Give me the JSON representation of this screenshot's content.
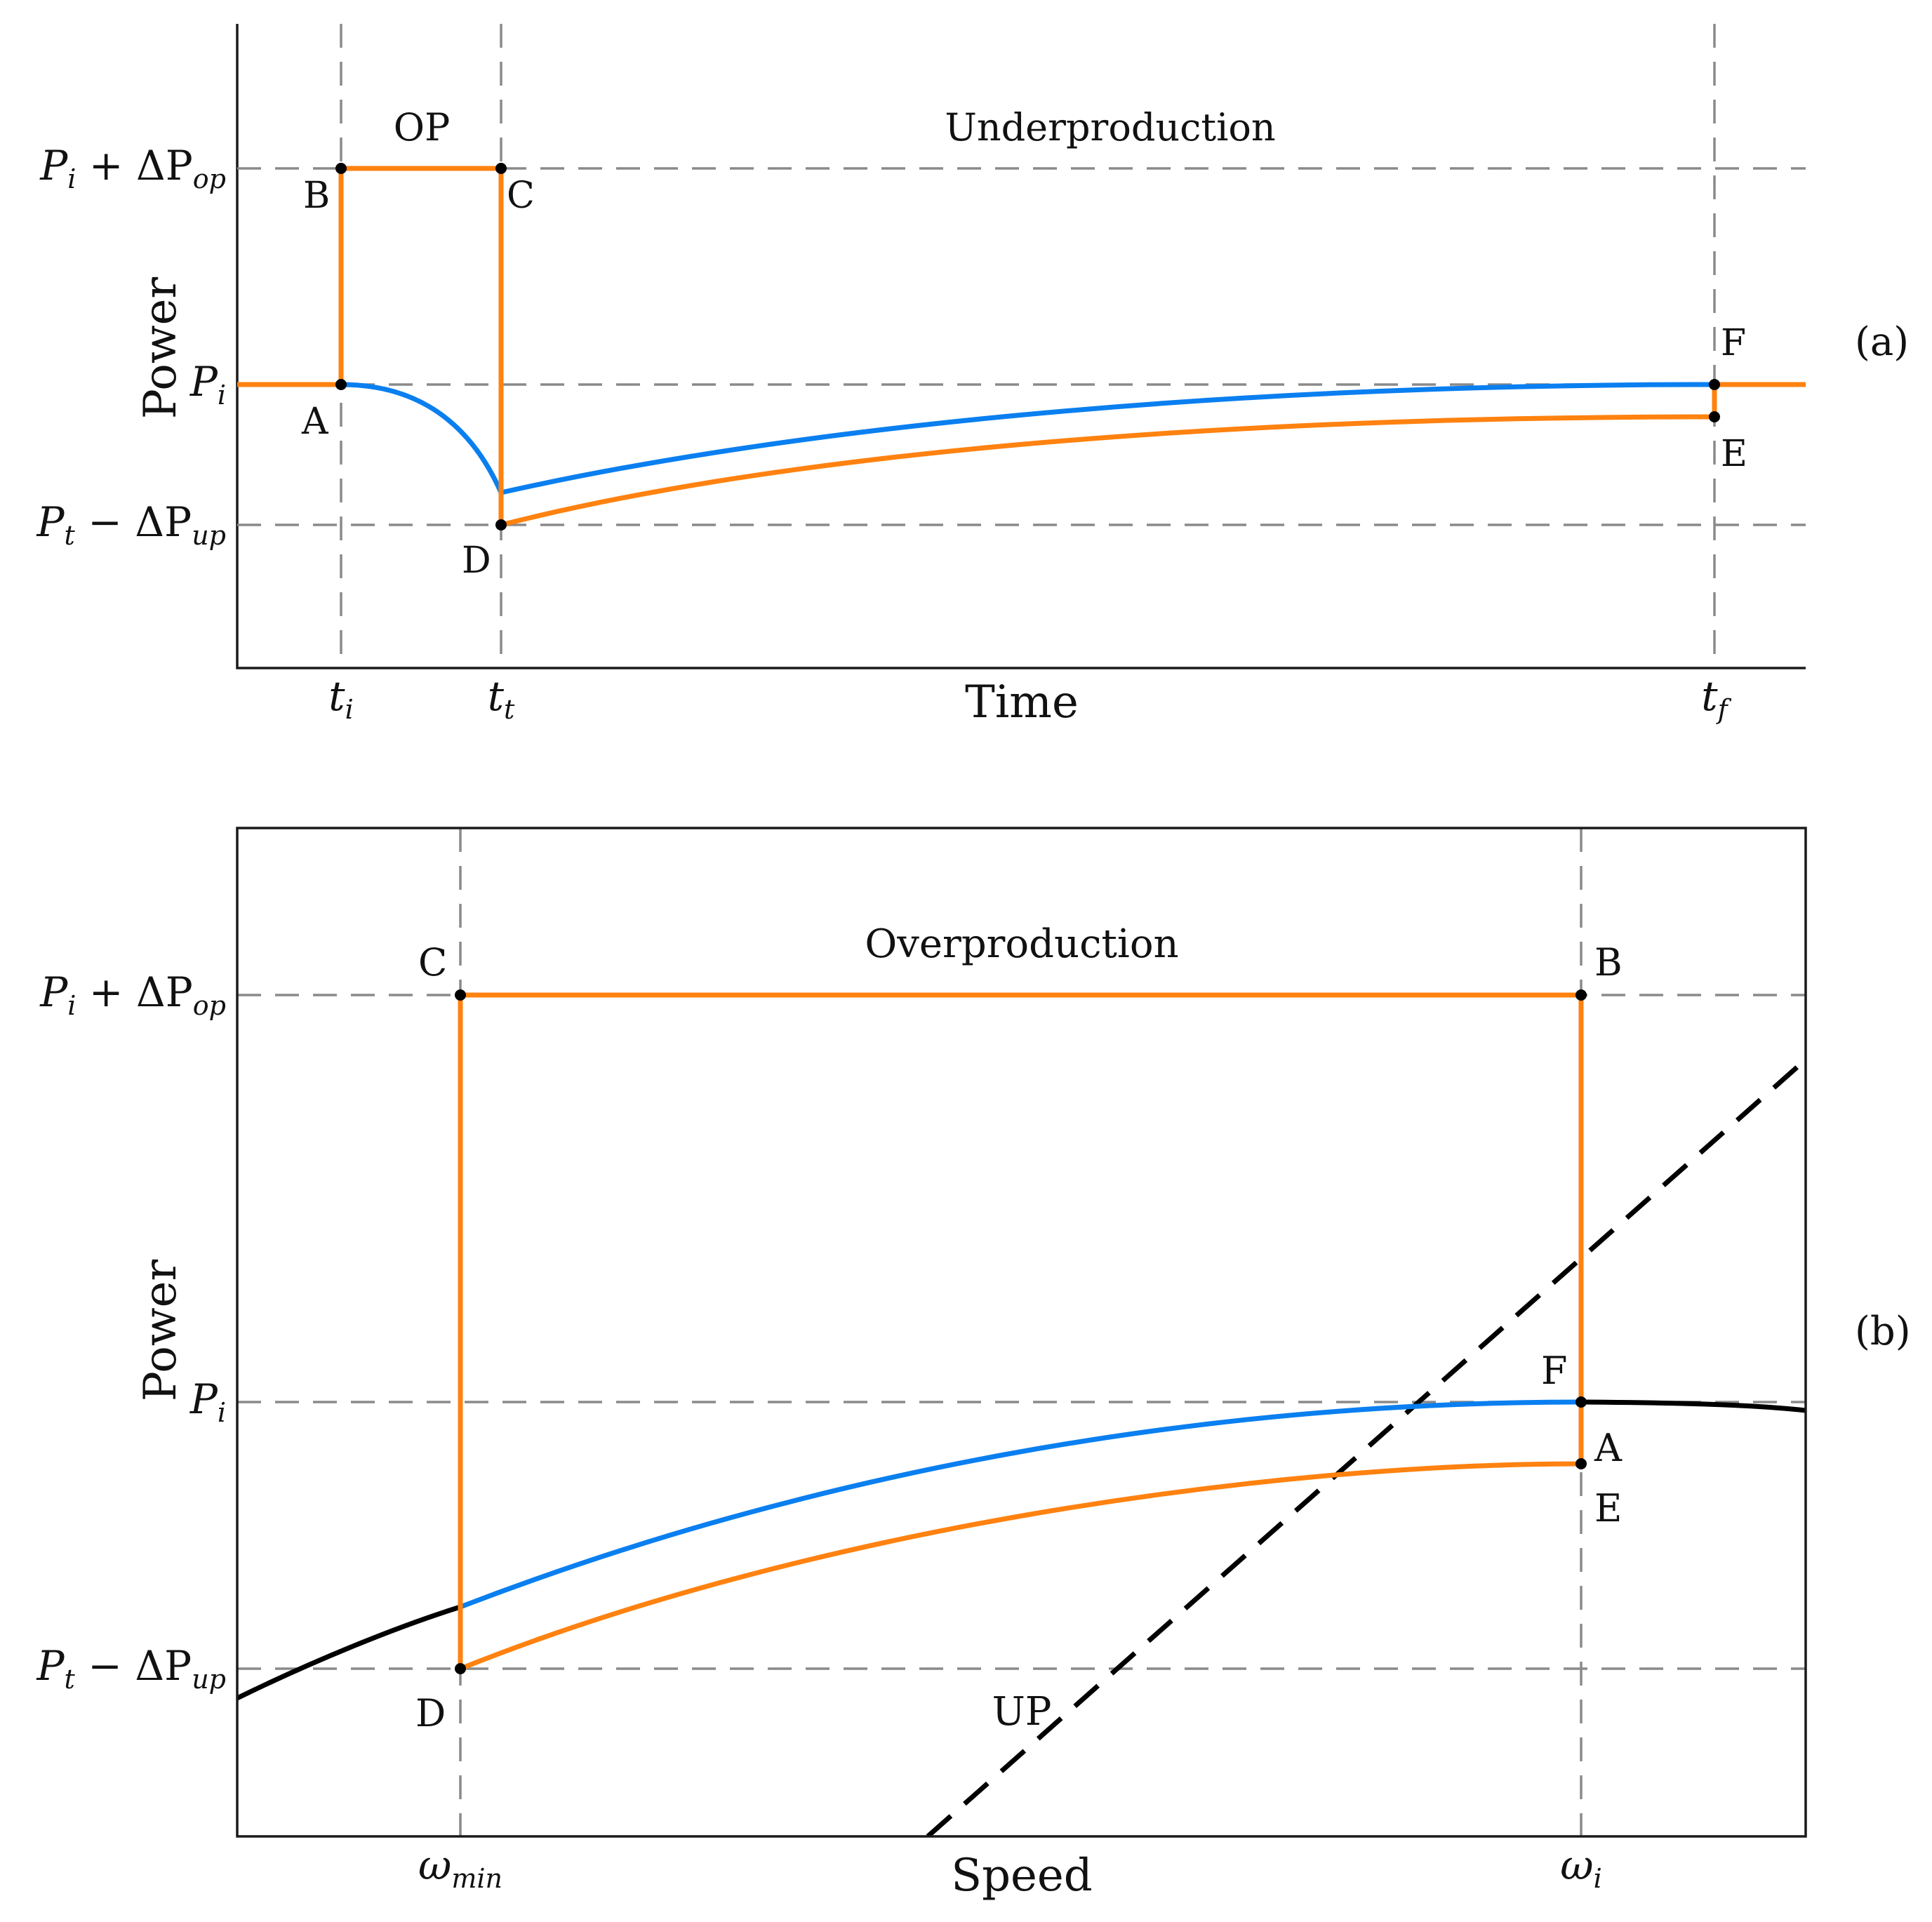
{
  "panel_a": {
    "tag": "(a)",
    "y_axis_label": "Power",
    "x_axis_label": "Time",
    "region_op": "OP",
    "region_under": "Underproduction",
    "y_ticks": {
      "upper": {
        "base": "P",
        "sub": "i",
        "rest": " + ΔP",
        "rest_sub": "op"
      },
      "mid": {
        "base": "P",
        "sub": "i"
      },
      "lower": {
        "base": "P",
        "sub": "t",
        "rest": " − ΔP",
        "rest_sub": "up"
      }
    },
    "x_ticks": [
      {
        "base": "t",
        "sub": "i"
      },
      {
        "base": "t",
        "sub": "t"
      },
      {
        "base": "t",
        "sub": "f"
      }
    ],
    "points": [
      "A",
      "B",
      "C",
      "D",
      "E",
      "F"
    ]
  },
  "panel_b": {
    "tag": "(b)",
    "y_axis_label": "Power",
    "x_axis_label": "Speed",
    "region_over": "Overproduction",
    "region_up": "UP",
    "y_ticks": {
      "upper": {
        "base": "P",
        "sub": "i",
        "rest": " + ΔP",
        "rest_sub": "op"
      },
      "mid": {
        "base": "P",
        "sub": "i"
      },
      "lower": {
        "base": "P",
        "sub": "t",
        "rest": " − ΔP",
        "rest_sub": "up"
      }
    },
    "x_ticks": [
      {
        "base": "ω",
        "sub": "min"
      },
      {
        "base": "ω",
        "sub": "i"
      }
    ],
    "points": [
      "A",
      "B",
      "C",
      "D",
      "E",
      "F"
    ]
  },
  "colors": {
    "controlled_power": "#ff8210",
    "aerodynamic_power": "#0a7ff0",
    "mpp_curve": "#000000",
    "guide_lines": "#8a8a8a"
  }
}
